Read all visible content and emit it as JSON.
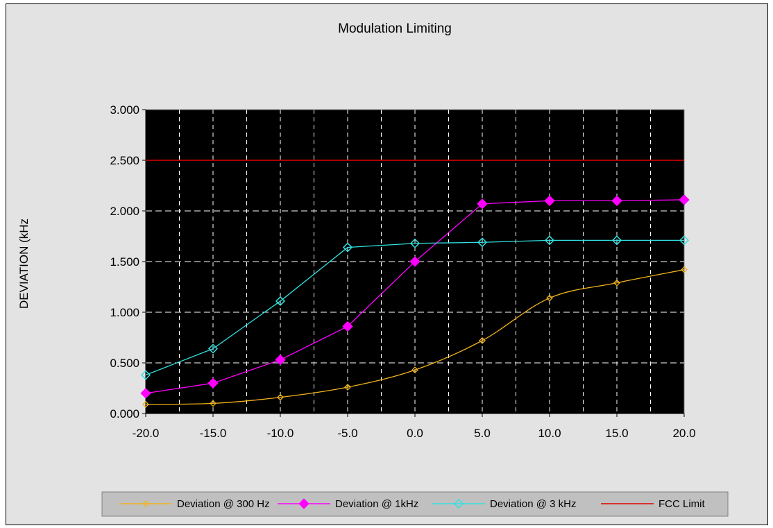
{
  "chart_data": {
    "type": "line",
    "title": "Modulation Limiting",
    "xlabel": "",
    "ylabel": "DEVIATION (kHz",
    "x": [
      -20,
      -15,
      -10,
      -5,
      0,
      5,
      10,
      15,
      20
    ],
    "x_tick_labels": [
      "-20.0",
      "-15.0",
      "-10.0",
      "-5.0",
      "0.0",
      "5.0",
      "10.0",
      "15.0",
      "20.0"
    ],
    "y_tick_labels": [
      "0.000",
      "0.500",
      "1.000",
      "1.500",
      "2.000",
      "2.500",
      "3.000"
    ],
    "xlim": [
      -20,
      20
    ],
    "ylim": [
      0,
      3
    ],
    "grid": true,
    "legend_position": "bottom",
    "plot_background": "#000000",
    "grid_color": "#ffffff",
    "series": [
      {
        "name": "Deviation @ 300 Hz",
        "color": "#f2b21c",
        "marker": "diamond-small",
        "values": [
          0.09,
          0.1,
          0.16,
          0.26,
          0.43,
          0.72,
          1.14,
          1.29,
          1.42
        ]
      },
      {
        "name": "Deviation @ 1kHz",
        "color": "#ff00ff",
        "marker": "diamond-filled",
        "values": [
          0.2,
          0.3,
          0.53,
          0.86,
          1.5,
          2.07,
          2.1,
          2.1,
          2.11
        ]
      },
      {
        "name": "Deviation @ 3 kHz",
        "color": "#33e0e0",
        "marker": "diamond-open",
        "values": [
          0.38,
          0.64,
          1.11,
          1.64,
          1.68,
          1.69,
          1.71,
          1.71,
          1.71
        ]
      },
      {
        "name": "FCC Limit",
        "color": "#e00000",
        "marker": "none",
        "values": [
          2.5,
          2.5,
          2.5,
          2.5,
          2.5,
          2.5,
          2.5,
          2.5,
          2.5
        ]
      }
    ]
  }
}
